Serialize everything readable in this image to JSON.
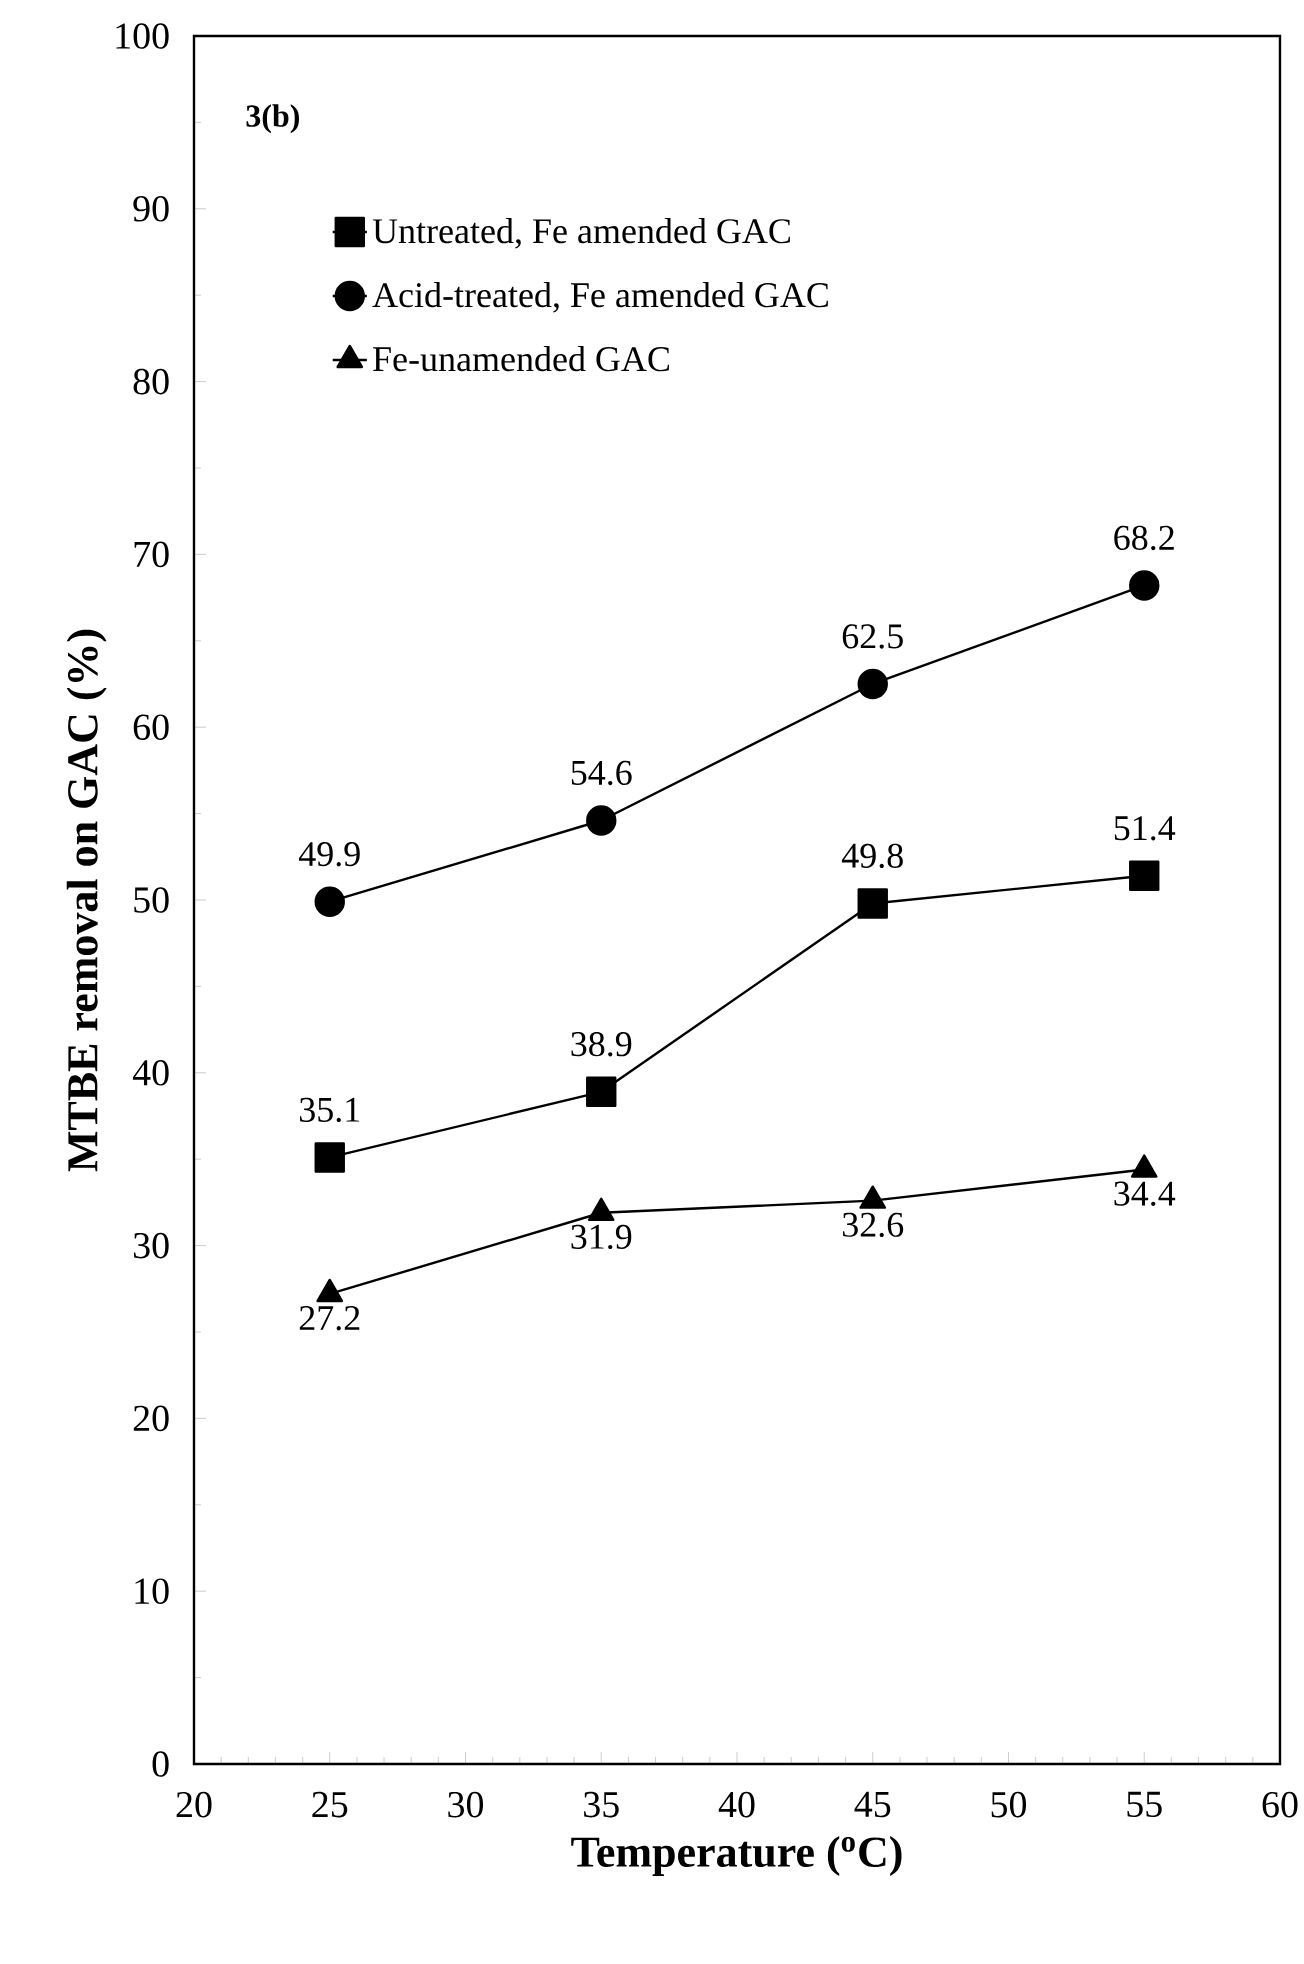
{
  "chart_data": {
    "type": "line",
    "xlabel": "Temperature ($^{o}$C)",
    "ylabel": "MTBE removal on GAC (%)",
    "annotations": [
      "3(b)"
    ],
    "x": [
      25,
      35,
      45,
      55
    ],
    "series": [
      {
        "name": "Untreated, Fe amended GAC",
        "color": "#000000",
        "marker": "square",
        "values": [
          35.1,
          38.9,
          49.8,
          51.4
        ]
      },
      {
        "name": "Acid-treated, Fe amended GAC",
        "color": "#000000",
        "marker": "circle",
        "values": [
          49.9,
          54.6,
          62.5,
          68.2
        ]
      },
      {
        "name": "Fe-unamended GAC",
        "color": "#000000",
        "marker": "triangle",
        "values": [
          27.2,
          31.9,
          32.6,
          34.4
        ]
      }
    ],
    "xlim": [
      20,
      60
    ],
    "xticks": [
      20,
      25,
      30,
      35,
      40,
      45,
      50,
      55,
      60
    ],
    "ylim": [
      0,
      100
    ],
    "yticks": [
      0,
      10,
      20,
      30,
      40,
      50,
      60,
      70,
      80,
      90,
      100
    ],
    "data_labels": true,
    "legend": "top left",
    "grid": false,
    "line_style": "solid"
  }
}
